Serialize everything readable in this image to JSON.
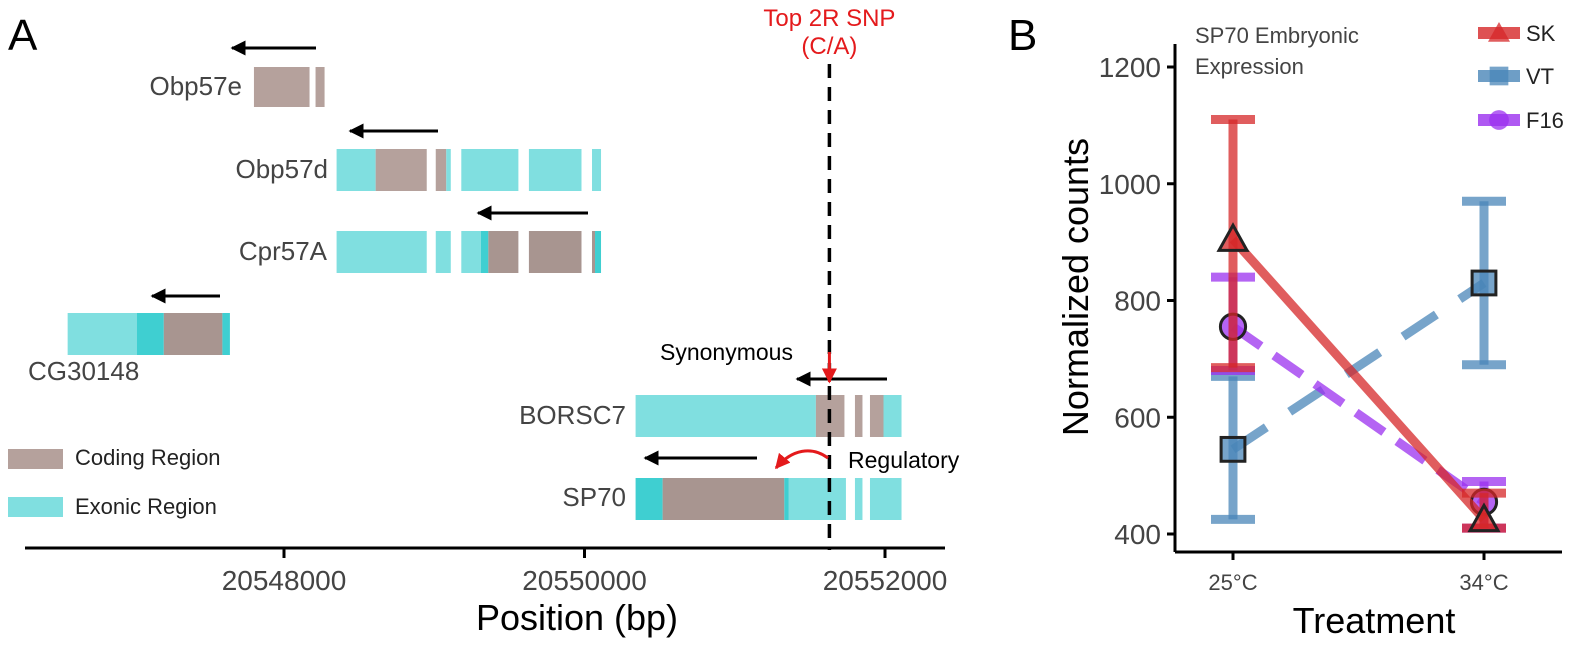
{
  "panel_a": {
    "letter": "A",
    "snp_label_line1": "Top 2R SNP",
    "snp_label_line2": "(C/A)",
    "synonymous_label": "Synonymous",
    "regulatory_label": "Regulatory",
    "legend": {
      "coding": "Coding Region",
      "exonic": "Exonic Region"
    },
    "colors": {
      "coding": "#b5a19c",
      "exonic": "#80dfe0",
      "overlap": "#3fcfd1",
      "coding_dark": "#a89590",
      "snp": "#e41a1c"
    }
  },
  "panel_b": {
    "letter": "B"
  },
  "chart_data": [
    {
      "type": "gene-track",
      "xlabel": "Position (bp)",
      "x_ticks": [
        20548000,
        20550000,
        20552000
      ],
      "xlim": [
        20546250,
        20552400
      ],
      "snp_position": 20551630,
      "genes": [
        {
          "name": "Obp57e",
          "direction": "reverse",
          "segments": [
            {
              "kind": "coding",
              "start": 20547800,
              "end": 20548170
            },
            {
              "kind": "coding",
              "start": 20548210,
              "end": 20548270
            }
          ]
        },
        {
          "name": "Obp57d",
          "direction": "reverse",
          "segments": [
            {
              "kind": "exonic",
              "start": 20548350,
              "end": 20548610
            },
            {
              "kind": "coding",
              "start": 20548610,
              "end": 20548950
            },
            {
              "kind": "coding",
              "start": 20549010,
              "end": 20549080
            },
            {
              "kind": "exonic",
              "start": 20549080,
              "end": 20549110
            },
            {
              "kind": "exonic",
              "start": 20549180,
              "end": 20549560
            },
            {
              "kind": "exonic",
              "start": 20549630,
              "end": 20549980
            },
            {
              "kind": "exonic",
              "start": 20550050,
              "end": 20550110
            }
          ]
        },
        {
          "name": "Cpr57A",
          "direction": "reverse",
          "segments": [
            {
              "kind": "exonic",
              "start": 20548350,
              "end": 20548950
            },
            {
              "kind": "exonic",
              "start": 20549010,
              "end": 20549110
            },
            {
              "kind": "exonic",
              "start": 20549180,
              "end": 20549310
            },
            {
              "kind": "overlap",
              "start": 20549310,
              "end": 20549360
            },
            {
              "kind": "coding_dark",
              "start": 20549360,
              "end": 20549560
            },
            {
              "kind": "coding_dark",
              "start": 20549630,
              "end": 20549980
            },
            {
              "kind": "coding_dark",
              "start": 20550050,
              "end": 20550070
            },
            {
              "kind": "overlap",
              "start": 20550070,
              "end": 20550110
            }
          ]
        },
        {
          "name": "CG30148",
          "direction": "reverse",
          "segments": [
            {
              "kind": "exonic",
              "start": 20546560,
              "end": 20547020
            },
            {
              "kind": "overlap",
              "start": 20547020,
              "end": 20547200
            },
            {
              "kind": "coding_dark",
              "start": 20547200,
              "end": 20547590
            },
            {
              "kind": "overlap",
              "start": 20547590,
              "end": 20547640
            }
          ]
        },
        {
          "name": "BORSC7",
          "direction": "reverse",
          "segments": [
            {
              "kind": "exonic",
              "start": 20550340,
              "end": 20551540
            },
            {
              "kind": "coding",
              "start": 20551540,
              "end": 20551730
            },
            {
              "kind": "coding",
              "start": 20551800,
              "end": 20551850
            },
            {
              "kind": "coding",
              "start": 20551900,
              "end": 20551990
            },
            {
              "kind": "exonic",
              "start": 20551990,
              "end": 20552110
            }
          ]
        },
        {
          "name": "SP70",
          "direction": "reverse",
          "segments": [
            {
              "kind": "overlap",
              "start": 20550340,
              "end": 20550520
            },
            {
              "kind": "coding_dark",
              "start": 20550520,
              "end": 20551330
            },
            {
              "kind": "overlap",
              "start": 20551330,
              "end": 20551360
            },
            {
              "kind": "exonic",
              "start": 20551360,
              "end": 20551740
            },
            {
              "kind": "exonic",
              "start": 20551800,
              "end": 20551850
            },
            {
              "kind": "exonic",
              "start": 20551900,
              "end": 20552110
            }
          ]
        }
      ]
    },
    {
      "type": "line",
      "title": "SP70 Embryonic Expression",
      "xlabel": "Treatment",
      "ylabel": "Normalized counts",
      "categories": [
        "25°C",
        "34°C"
      ],
      "ylim": [
        380,
        1250
      ],
      "y_ticks": [
        400,
        600,
        800,
        1000,
        1200
      ],
      "legend_position": "top-right",
      "series": [
        {
          "name": "SK",
          "color": "#d62728",
          "marker": "triangle",
          "dash": "solid",
          "values": [
            905,
            425
          ],
          "err_low": [
            685,
            410
          ],
          "err_high": [
            1110,
            470
          ]
        },
        {
          "name": "VT",
          "color": "#4a86b8",
          "marker": "square",
          "dash": "long-dash",
          "values": [
            545,
            830
          ],
          "err_low": [
            425,
            690
          ],
          "err_high": [
            670,
            970
          ]
        },
        {
          "name": "F16",
          "color": "#9b30ef",
          "marker": "circle",
          "dash": "dash",
          "values": [
            755,
            455
          ],
          "err_low": [
            680,
            410
          ],
          "err_high": [
            840,
            490
          ]
        }
      ]
    }
  ]
}
